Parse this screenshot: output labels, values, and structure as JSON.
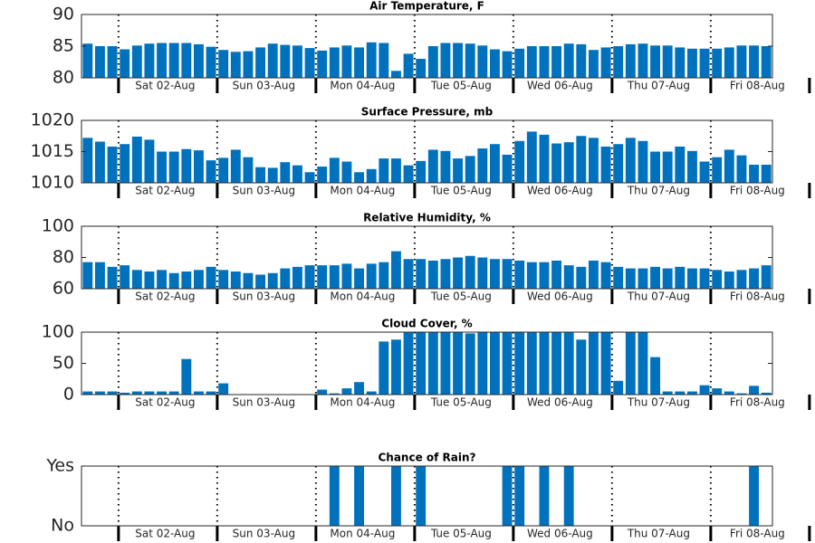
{
  "chart_data": [
    {
      "type": "bar",
      "title": "Air Temperature, F",
      "color": "#0072bd",
      "xlim": [
        -0.5,
        55.5
      ],
      "xticks": [
        {
          "value": 6.5,
          "label": "Sat 02-Aug"
        },
        {
          "value": 14.5,
          "label": "Sun 03-Aug"
        },
        {
          "value": 22.5,
          "label": "Mon 04-Aug"
        },
        {
          "value": 30.5,
          "label": "Tue 05-Aug"
        },
        {
          "value": 38.5,
          "label": "Wed 06-Aug"
        },
        {
          "value": 46.5,
          "label": "Thu 07-Aug"
        },
        {
          "value": 54.5,
          "label": "Fri 08-Aug"
        }
      ],
      "ylim": [
        80,
        90
      ],
      "yticks": [
        80,
        85,
        90
      ],
      "values": [
        85.4,
        85.0,
        85.0,
        84.5,
        85.1,
        85.4,
        85.5,
        85.5,
        85.5,
        85.3,
        84.9,
        84.4,
        84.1,
        84.2,
        84.8,
        85.4,
        85.2,
        85.1,
        84.7,
        84.3,
        84.8,
        85.1,
        84.8,
        85.6,
        85.5,
        81.1,
        83.8,
        83.0,
        85.0,
        85.5,
        85.5,
        85.4,
        85.1,
        84.5,
        84.2,
        84.6,
        85.0,
        85.0,
        85.0,
        85.4,
        85.3,
        84.4,
        84.8,
        85.0,
        85.3,
        85.4,
        85.1,
        85.1,
        84.8,
        84.6,
        84.6,
        84.6,
        84.8,
        85.1,
        85.1,
        85.0
      ]
    },
    {
      "type": "bar",
      "title": "Surface Pressure, mb",
      "color": "#0072bd",
      "xlim": [
        -0.5,
        55.5
      ],
      "xticks": [
        {
          "value": 6.5,
          "label": "Sat 02-Aug"
        },
        {
          "value": 14.5,
          "label": "Sun 03-Aug"
        },
        {
          "value": 22.5,
          "label": "Mon 04-Aug"
        },
        {
          "value": 30.5,
          "label": "Tue 05-Aug"
        },
        {
          "value": 38.5,
          "label": "Wed 06-Aug"
        },
        {
          "value": 46.5,
          "label": "Thu 07-Aug"
        },
        {
          "value": 54.5,
          "label": "Fri 08-Aug"
        }
      ],
      "ylim": [
        1010,
        1020
      ],
      "yticks": [
        1010,
        1015,
        1020
      ],
      "values": [
        1017.2,
        1016.6,
        1015.8,
        1016.2,
        1017.4,
        1016.9,
        1015.0,
        1015.0,
        1015.4,
        1015.2,
        1013.6,
        1014.0,
        1015.3,
        1014.1,
        1012.5,
        1012.4,
        1013.3,
        1012.8,
        1011.7,
        1012.6,
        1014.0,
        1013.4,
        1011.7,
        1012.2,
        1013.9,
        1013.9,
        1012.8,
        1013.5,
        1015.3,
        1015.1,
        1013.9,
        1014.3,
        1015.5,
        1016.2,
        1014.5,
        1016.7,
        1018.2,
        1017.7,
        1016.3,
        1016.5,
        1017.5,
        1017.2,
        1015.8,
        1016.2,
        1017.2,
        1016.7,
        1015.0,
        1015.0,
        1015.8,
        1015.1,
        1013.4,
        1014.1,
        1015.3,
        1014.4,
        1012.9,
        1012.9
      ]
    },
    {
      "type": "bar",
      "title": "Relative Humidity, %",
      "color": "#0072bd",
      "xlim": [
        -0.5,
        55.5
      ],
      "xticks": [
        {
          "value": 6.5,
          "label": "Sat 02-Aug"
        },
        {
          "value": 14.5,
          "label": "Sun 03-Aug"
        },
        {
          "value": 22.5,
          "label": "Mon 04-Aug"
        },
        {
          "value": 30.5,
          "label": "Tue 05-Aug"
        },
        {
          "value": 38.5,
          "label": "Wed 06-Aug"
        },
        {
          "value": 46.5,
          "label": "Thu 07-Aug"
        },
        {
          "value": 54.5,
          "label": "Fri 08-Aug"
        }
      ],
      "ylim": [
        60,
        100
      ],
      "yticks": [
        60,
        80,
        100
      ],
      "values": [
        77,
        77,
        74,
        75,
        72,
        71,
        72,
        70,
        71,
        72,
        74,
        72,
        71,
        70,
        69,
        70,
        73,
        74,
        75,
        75,
        75,
        76,
        73,
        76,
        77,
        84,
        79,
        79,
        78,
        79,
        80,
        81,
        80,
        79,
        79,
        78,
        77,
        77,
        78,
        75,
        74,
        78,
        77,
        74,
        73,
        73,
        74,
        73,
        74,
        73,
        73,
        72,
        71,
        72,
        73,
        75
      ]
    },
    {
      "type": "bar",
      "title": "Cloud Cover, %",
      "color": "#0072bd",
      "xlim": [
        -0.5,
        55.5
      ],
      "xticks": [
        {
          "value": 6.5,
          "label": "Sat 02-Aug"
        },
        {
          "value": 14.5,
          "label": "Sun 03-Aug"
        },
        {
          "value": 22.5,
          "label": "Mon 04-Aug"
        },
        {
          "value": 30.5,
          "label": "Tue 05-Aug"
        },
        {
          "value": 38.5,
          "label": "Wed 06-Aug"
        },
        {
          "value": 46.5,
          "label": "Thu 07-Aug"
        },
        {
          "value": 54.5,
          "label": "Fri 08-Aug"
        }
      ],
      "ylim": [
        0,
        100
      ],
      "yticks": [
        0,
        50,
        100
      ],
      "values": [
        5,
        5,
        5,
        3,
        5,
        5,
        5,
        5,
        57,
        5,
        5,
        18,
        0,
        0,
        0,
        0,
        0,
        0,
        0,
        8,
        2,
        10,
        20,
        5,
        85,
        88,
        100,
        100,
        100,
        100,
        100,
        98,
        100,
        100,
        100,
        100,
        100,
        100,
        100,
        100,
        88,
        100,
        100,
        22,
        100,
        100,
        60,
        5,
        5,
        5,
        15,
        10,
        5,
        2,
        14,
        3
      ]
    },
    {
      "type": "bar",
      "title": "Chance of Rain?",
      "color": "#0072bd",
      "xlim": [
        -0.5,
        55.5
      ],
      "xticks": [
        {
          "value": 6.5,
          "label": "Sat 02-Aug"
        },
        {
          "value": 14.5,
          "label": "Sun 03-Aug"
        },
        {
          "value": 22.5,
          "label": "Mon 04-Aug"
        },
        {
          "value": 30.5,
          "label": "Tue 05-Aug"
        },
        {
          "value": 38.5,
          "label": "Wed 06-Aug"
        },
        {
          "value": 46.5,
          "label": "Thu 07-Aug"
        },
        {
          "value": 54.5,
          "label": "Fri 08-Aug"
        }
      ],
      "ylim": [
        0,
        1
      ],
      "yticks": [
        {
          "value": 0,
          "label": "No"
        },
        {
          "value": 1,
          "label": "Yes"
        }
      ],
      "values": [
        0,
        0,
        0,
        0,
        0,
        0,
        0,
        0,
        0,
        0,
        0,
        0,
        0,
        0,
        0,
        0,
        0,
        0,
        0,
        0,
        1,
        0,
        1,
        0,
        0,
        1,
        0,
        1,
        0,
        0,
        0,
        0,
        0,
        0,
        1,
        1,
        0,
        1,
        0,
        1,
        0,
        0,
        0,
        0,
        0,
        0,
        0,
        0,
        0,
        0,
        0,
        0,
        0,
        0,
        1,
        0
      ]
    }
  ]
}
